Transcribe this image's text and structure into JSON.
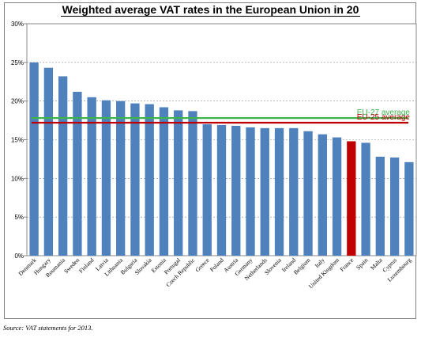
{
  "chart_data": {
    "type": "bar",
    "title": "Weighted average VAT rates in the European Union in 20",
    "xlabel": "",
    "ylabel": "",
    "ylim": [
      0,
      30
    ],
    "yticks": [
      "0%",
      "5%",
      "10%",
      "15%",
      "20%",
      "25%",
      "30%"
    ],
    "grid": true,
    "categories": [
      "Denmark",
      "Hungary",
      "Roumania",
      "Sweden",
      "Finland",
      "Latvia",
      "Lithuania",
      "Bulgaria",
      "Slovakia",
      "Estonia",
      "Portugal",
      "Czech Republic",
      "Greece",
      "Poland",
      "Austria",
      "Germany",
      "Netherlands",
      "Slovenia",
      "Ireland",
      "Belgium",
      "Italy",
      "United Kingdom",
      "France",
      "Spain",
      "Malta",
      "Cyprus",
      "Luxembourg"
    ],
    "values": [
      25.0,
      24.3,
      23.2,
      21.2,
      20.5,
      20.1,
      20.0,
      19.7,
      19.6,
      19.2,
      18.8,
      18.7,
      17.0,
      16.9,
      16.8,
      16.6,
      16.5,
      16.5,
      16.5,
      16.1,
      15.7,
      15.3,
      14.8,
      14.6,
      12.8,
      12.7,
      12.1
    ],
    "colors": {
      "default": "#4f81bd",
      "highlight": "#c00000"
    },
    "highlight_category": "France",
    "reference_lines": [
      {
        "label": "EU-27 average",
        "value": 17.8,
        "color": "#3cb44b"
      },
      {
        "label": "EU-25 average",
        "value": 17.2,
        "color": "#c00000"
      }
    ]
  },
  "source_note": "Source: VAT statements for 2013."
}
